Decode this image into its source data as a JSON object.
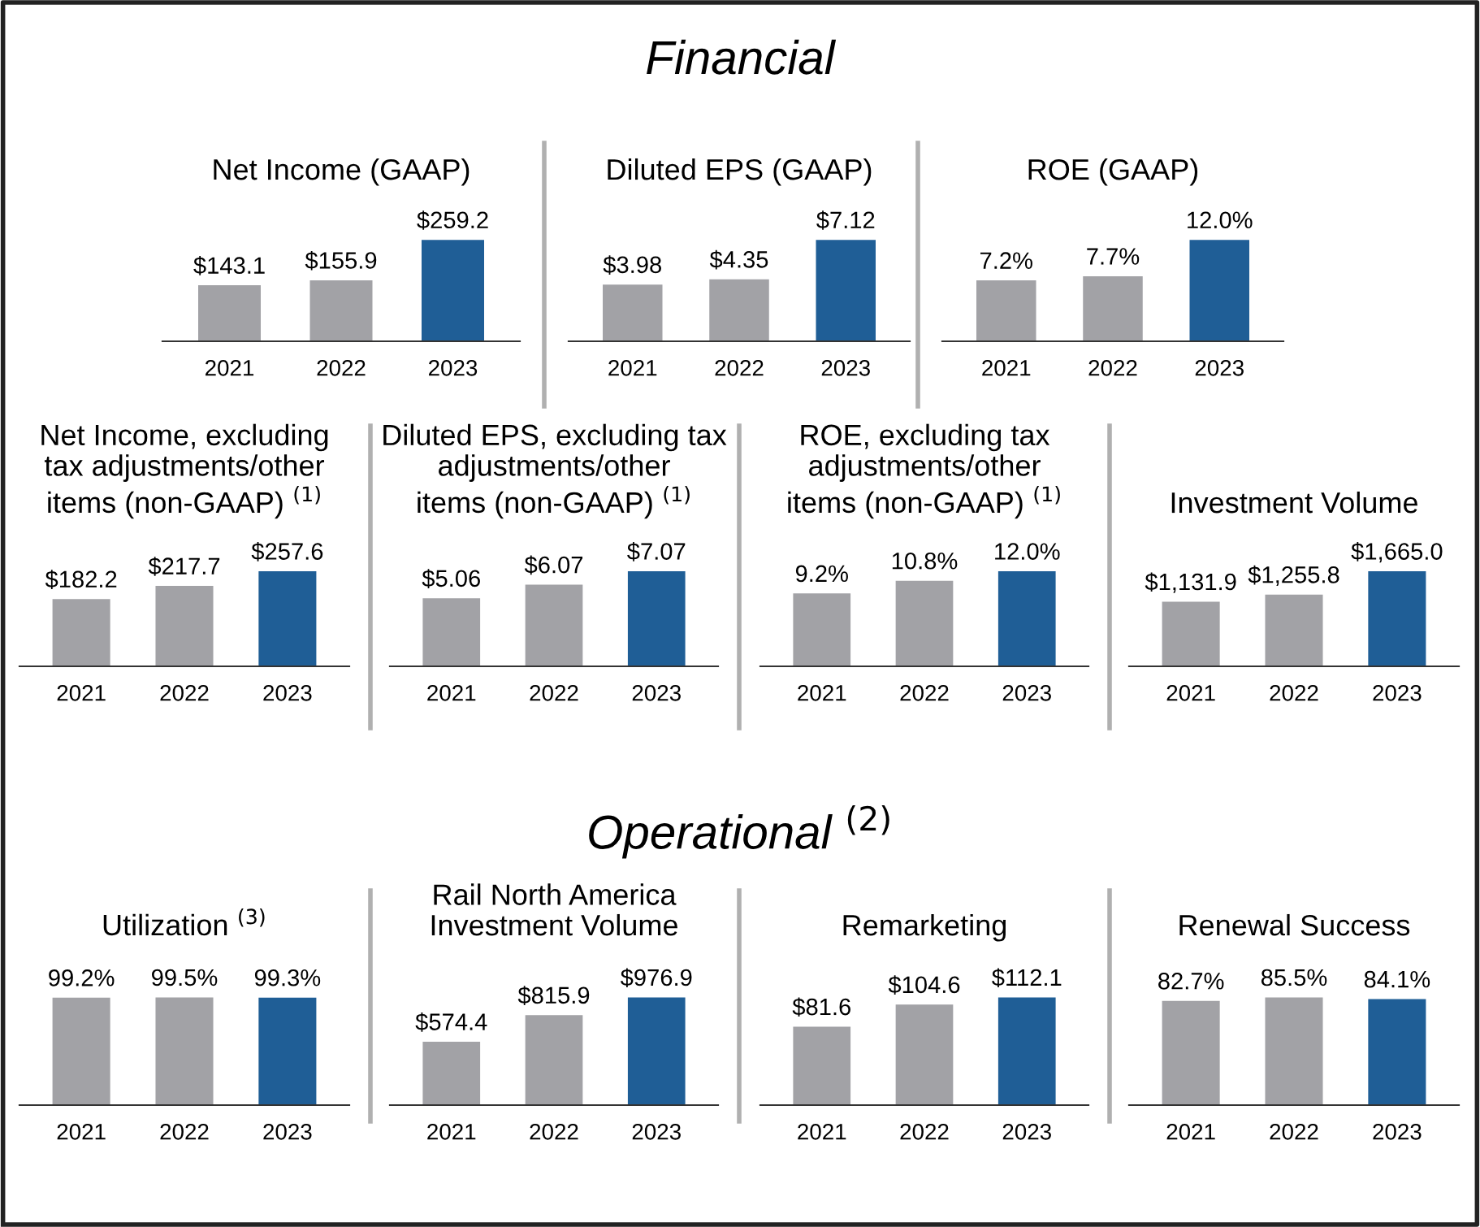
{
  "chart_data": [
    {
      "type": "other",
      "title": "Financial"
    },
    {
      "type": "bar",
      "title": "Net Income (GAAP)",
      "categories": [
        "2021",
        "2022",
        "2023"
      ],
      "values": [
        143.1,
        155.9,
        259.2
      ],
      "value_labels": [
        "$143.1",
        "$155.9",
        "$259.2"
      ],
      "colors": [
        "#a2a2a6",
        "#a2a2a6",
        "#1f5e96"
      ]
    },
    {
      "type": "bar",
      "title": "Diluted EPS (GAAP)",
      "categories": [
        "2021",
        "2022",
        "2023"
      ],
      "values": [
        3.98,
        4.35,
        7.12
      ],
      "value_labels": [
        "$3.98",
        "$4.35",
        "$7.12"
      ],
      "colors": [
        "#a2a2a6",
        "#a2a2a6",
        "#1f5e96"
      ]
    },
    {
      "type": "bar",
      "title": "ROE (GAAP)",
      "categories": [
        "2021",
        "2022",
        "2023"
      ],
      "values": [
        7.2,
        7.7,
        12.0
      ],
      "value_labels": [
        "7.2%",
        "7.7%",
        "12.0%"
      ],
      "colors": [
        "#a2a2a6",
        "#a2a2a6",
        "#1f5e96"
      ]
    },
    {
      "type": "bar",
      "title": "Net Income, excluding\ntax adjustments/other\nitems (non-GAAP) $^{(1)}$",
      "categories": [
        "2021",
        "2022",
        "2023"
      ],
      "values": [
        182.2,
        217.7,
        257.6
      ],
      "value_labels": [
        "$182.2",
        "$217.7",
        "$257.6"
      ],
      "colors": [
        "#a2a2a6",
        "#a2a2a6",
        "#1f5e96"
      ]
    },
    {
      "type": "bar",
      "title": "Diluted EPS, excluding tax\nadjustments/other\nitems (non-GAAP) $^{(1)}$",
      "categories": [
        "2021",
        "2022",
        "2023"
      ],
      "values": [
        5.06,
        6.07,
        7.07
      ],
      "value_labels": [
        "$5.06",
        "$6.07",
        "$7.07"
      ],
      "colors": [
        "#a2a2a6",
        "#a2a2a6",
        "#1f5e96"
      ]
    },
    {
      "type": "bar",
      "title": "ROE, excluding tax\nadjustments/other\nitems (non-GAAP) $^{(1)}$",
      "categories": [
        "2021",
        "2022",
        "2023"
      ],
      "values": [
        9.2,
        10.8,
        12.0
      ],
      "value_labels": [
        "9.2%",
        "10.8%",
        "12.0%"
      ],
      "colors": [
        "#a2a2a6",
        "#a2a2a6",
        "#1f5e96"
      ]
    },
    {
      "type": "bar",
      "title": "Investment Volume",
      "categories": [
        "2021",
        "2022",
        "2023"
      ],
      "values": [
        1131.9,
        1255.8,
        1665.0
      ],
      "value_labels": [
        "$1,131.9",
        "$1,255.8",
        "$1,665.0"
      ],
      "colors": [
        "#a2a2a6",
        "#a2a2a6",
        "#1f5e96"
      ]
    },
    {
      "type": "other",
      "title": "Operational $^{(2)}$"
    },
    {
      "type": "bar",
      "title": "Utilization $^{(3)}$",
      "categories": [
        "2021",
        "2022",
        "2023"
      ],
      "values": [
        99.2,
        99.5,
        99.3
      ],
      "value_labels": [
        "99.2%",
        "99.5%",
        "99.3%"
      ],
      "colors": [
        "#a2a2a6",
        "#a2a2a6",
        "#1f5e96"
      ]
    },
    {
      "type": "bar",
      "title": "Rail North America\nInvestment Volume",
      "categories": [
        "2021",
        "2022",
        "2023"
      ],
      "values": [
        574.4,
        815.9,
        976.9
      ],
      "value_labels": [
        "$574.4",
        "$815.9",
        "$976.9"
      ],
      "colors": [
        "#a2a2a6",
        "#a2a2a6",
        "#1f5e96"
      ]
    },
    {
      "type": "bar",
      "title": "Remarketing",
      "categories": [
        "2021",
        "2022",
        "2023"
      ],
      "values": [
        81.6,
        104.6,
        112.1
      ],
      "value_labels": [
        "$81.6",
        "$104.6",
        "$112.1"
      ],
      "colors": [
        "#a2a2a6",
        "#a2a2a6",
        "#1f5e96"
      ]
    },
    {
      "type": "bar",
      "title": "Renewal Success",
      "categories": [
        "2021",
        "2022",
        "2023"
      ],
      "values": [
        82.7,
        85.5,
        84.1
      ],
      "value_labels": [
        "82.7%",
        "85.5%",
        "84.1%"
      ],
      "colors": [
        "#a2a2a6",
        "#a2a2a6",
        "#1f5e96"
      ]
    }
  ]
}
